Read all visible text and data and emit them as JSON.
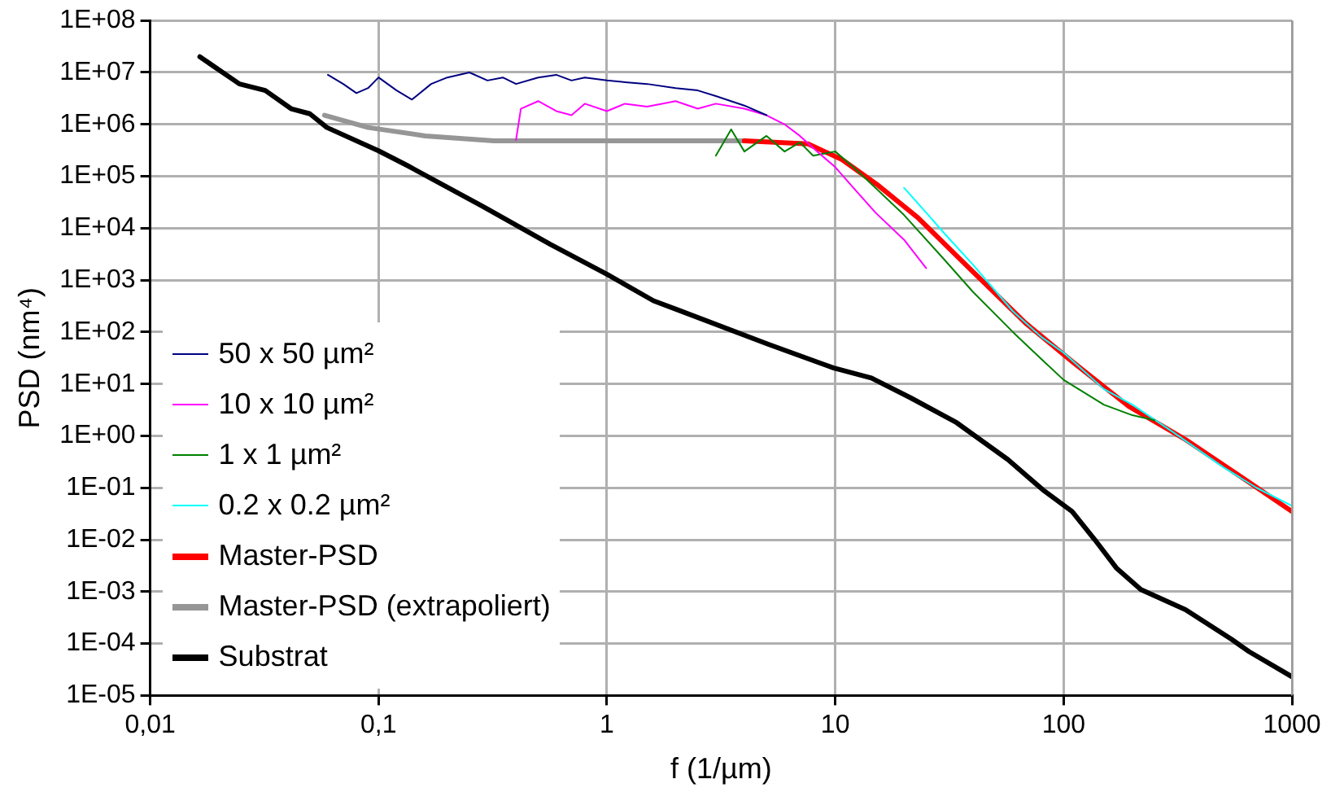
{
  "chart_data": {
    "type": "line",
    "xlabel": "f (1/µm)",
    "ylabel": "PSD (nm⁴)",
    "log": "xy",
    "grid": true,
    "legend": "bottom left",
    "xlim": [
      0.01,
      1000
    ],
    "xticks": [
      {
        "value": 0.01,
        "label": "0,01"
      },
      {
        "value": 0.1,
        "label": "0,1"
      },
      1,
      10,
      100,
      1000
    ],
    "ylim": [
      1e-05,
      100000000.0
    ],
    "yticks": [
      {
        "value": 100000000.0,
        "label": "1E+08"
      },
      {
        "value": 10000000.0,
        "label": "1E+07"
      },
      {
        "value": 1000000.0,
        "label": "1E+06"
      },
      {
        "value": 100000.0,
        "label": "1E+05"
      },
      {
        "value": 10000.0,
        "label": "1E+04"
      },
      {
        "value": 1000.0,
        "label": "1E+03"
      },
      {
        "value": 100.0,
        "label": "1E+02"
      },
      {
        "value": 10.0,
        "label": "1E+01"
      },
      {
        "value": 1,
        "label": "1E+00"
      },
      {
        "value": 0.1,
        "label": "1E-01"
      },
      {
        "value": 0.01,
        "label": "1E-02"
      },
      {
        "value": 0.001,
        "label": "1E-03"
      },
      {
        "value": 0.0001,
        "label": "1E-04"
      },
      {
        "value": 1e-05,
        "label": "1E-05"
      }
    ],
    "series": [
      {
        "name": "50 x 50 µm²",
        "color": "#000080",
        "x": [
          0.06,
          0.07,
          0.08,
          0.09,
          0.1,
          0.12,
          0.14,
          0.17,
          0.2,
          0.25,
          0.3,
          0.35,
          0.4,
          0.5,
          0.6,
          0.7,
          0.8,
          1,
          1.2,
          1.5,
          2,
          2.5,
          3,
          4,
          5
        ],
        "values": [
          9000000.0,
          6000000.0,
          4000000.0,
          5000000.0,
          8000000.0,
          4500000.0,
          3000000.0,
          6000000.0,
          8000000.0,
          10000000.0,
          7000000.0,
          8000000.0,
          6000000.0,
          8000000.0,
          9000000.0,
          7000000.0,
          8000000.0,
          7000000.0,
          6500000.0,
          6000000.0,
          5000000.0,
          4500000.0,
          3500000.0,
          2300000.0,
          1500000.0
        ]
      },
      {
        "name": "10 x 10 µm²",
        "color": "#ff00ff",
        "x": [
          0.4,
          0.42,
          0.5,
          0.6,
          0.7,
          0.8,
          1,
          1.2,
          1.5,
          2,
          2.5,
          3,
          4,
          5,
          6,
          7,
          8,
          10,
          12,
          15,
          20,
          25
        ],
        "values": [
          500000.0,
          2000000.0,
          2800000.0,
          1800000.0,
          1500000.0,
          2500000.0,
          1800000.0,
          2500000.0,
          2200000.0,
          2800000.0,
          2000000.0,
          2500000.0,
          2000000.0,
          1500000.0,
          1000000.0,
          600000.0,
          350000.0,
          150000.0,
          60000.0,
          20000.0,
          6000.0,
          1700.0
        ]
      },
      {
        "name": "1 x 1 µm²",
        "color": "#008000",
        "x": [
          3,
          3.5,
          4,
          5,
          6,
          7,
          8,
          10,
          12,
          15,
          20,
          30,
          40,
          60,
          80,
          100,
          150,
          200,
          250
        ],
        "values": [
          250000.0,
          800000.0,
          300000.0,
          600000.0,
          300000.0,
          450000.0,
          250000.0,
          300000.0,
          150000.0,
          60000.0,
          18000.0,
          2500.0,
          600,
          100,
          30,
          12,
          4,
          2.5,
          2
        ]
      },
      {
        "name": "0.2 x 0.2 µm²",
        "color": "#00ffff",
        "x": [
          20,
          25,
          30,
          40,
          60,
          80,
          100,
          150,
          200,
          300,
          500,
          700,
          1000
        ],
        "values": [
          60000.0,
          20000.0,
          8000.0,
          2000.0,
          250,
          80,
          40,
          8,
          4,
          1.2,
          0.25,
          0.1,
          0.045
        ]
      },
      {
        "name": "Master-PSD",
        "color": "#ff0000",
        "x": [
          4,
          7.6,
          10.7,
          15.2,
          23,
          38.6,
          68,
          109,
          193,
          342,
          615,
          1000
        ],
        "values": [
          480000.0,
          420000.0,
          210000.0,
          70000.0,
          16000.0,
          1700.0,
          150,
          27,
          3.7,
          0.85,
          0.15,
          0.035
        ]
      },
      {
        "name": "Master-PSD (extrapoliert)",
        "color": "#969696",
        "x": [
          0.058,
          0.09,
          0.16,
          0.32,
          1,
          4
        ],
        "values": [
          1500000.0,
          870000.0,
          600000.0,
          480000.0,
          480000.0,
          480000.0
        ]
      },
      {
        "name": "Substrat",
        "color": "#000000",
        "x": [
          0.0165,
          0.0246,
          0.0319,
          0.0414,
          0.05,
          0.0594,
          0.1,
          0.134,
          0.283,
          0.565,
          1,
          1.6,
          2.03,
          5.1,
          9.8,
          14.4,
          21.4,
          34,
          57,
          81,
          109,
          137,
          171,
          218,
          342,
          545,
          649,
          1000
        ],
        "values": [
          20000000.0,
          6000000.0,
          4500000.0,
          2000000.0,
          1600000.0,
          870000.0,
          310000.0,
          160000.0,
          27000.0,
          4900.0,
          1300.0,
          400,
          270,
          58,
          20.5,
          13,
          5.4,
          1.8,
          0.35,
          0.092,
          0.035,
          0.01,
          0.0028,
          0.0011,
          0.00045,
          0.00012,
          7e-05,
          2.3e-05
        ]
      }
    ]
  }
}
